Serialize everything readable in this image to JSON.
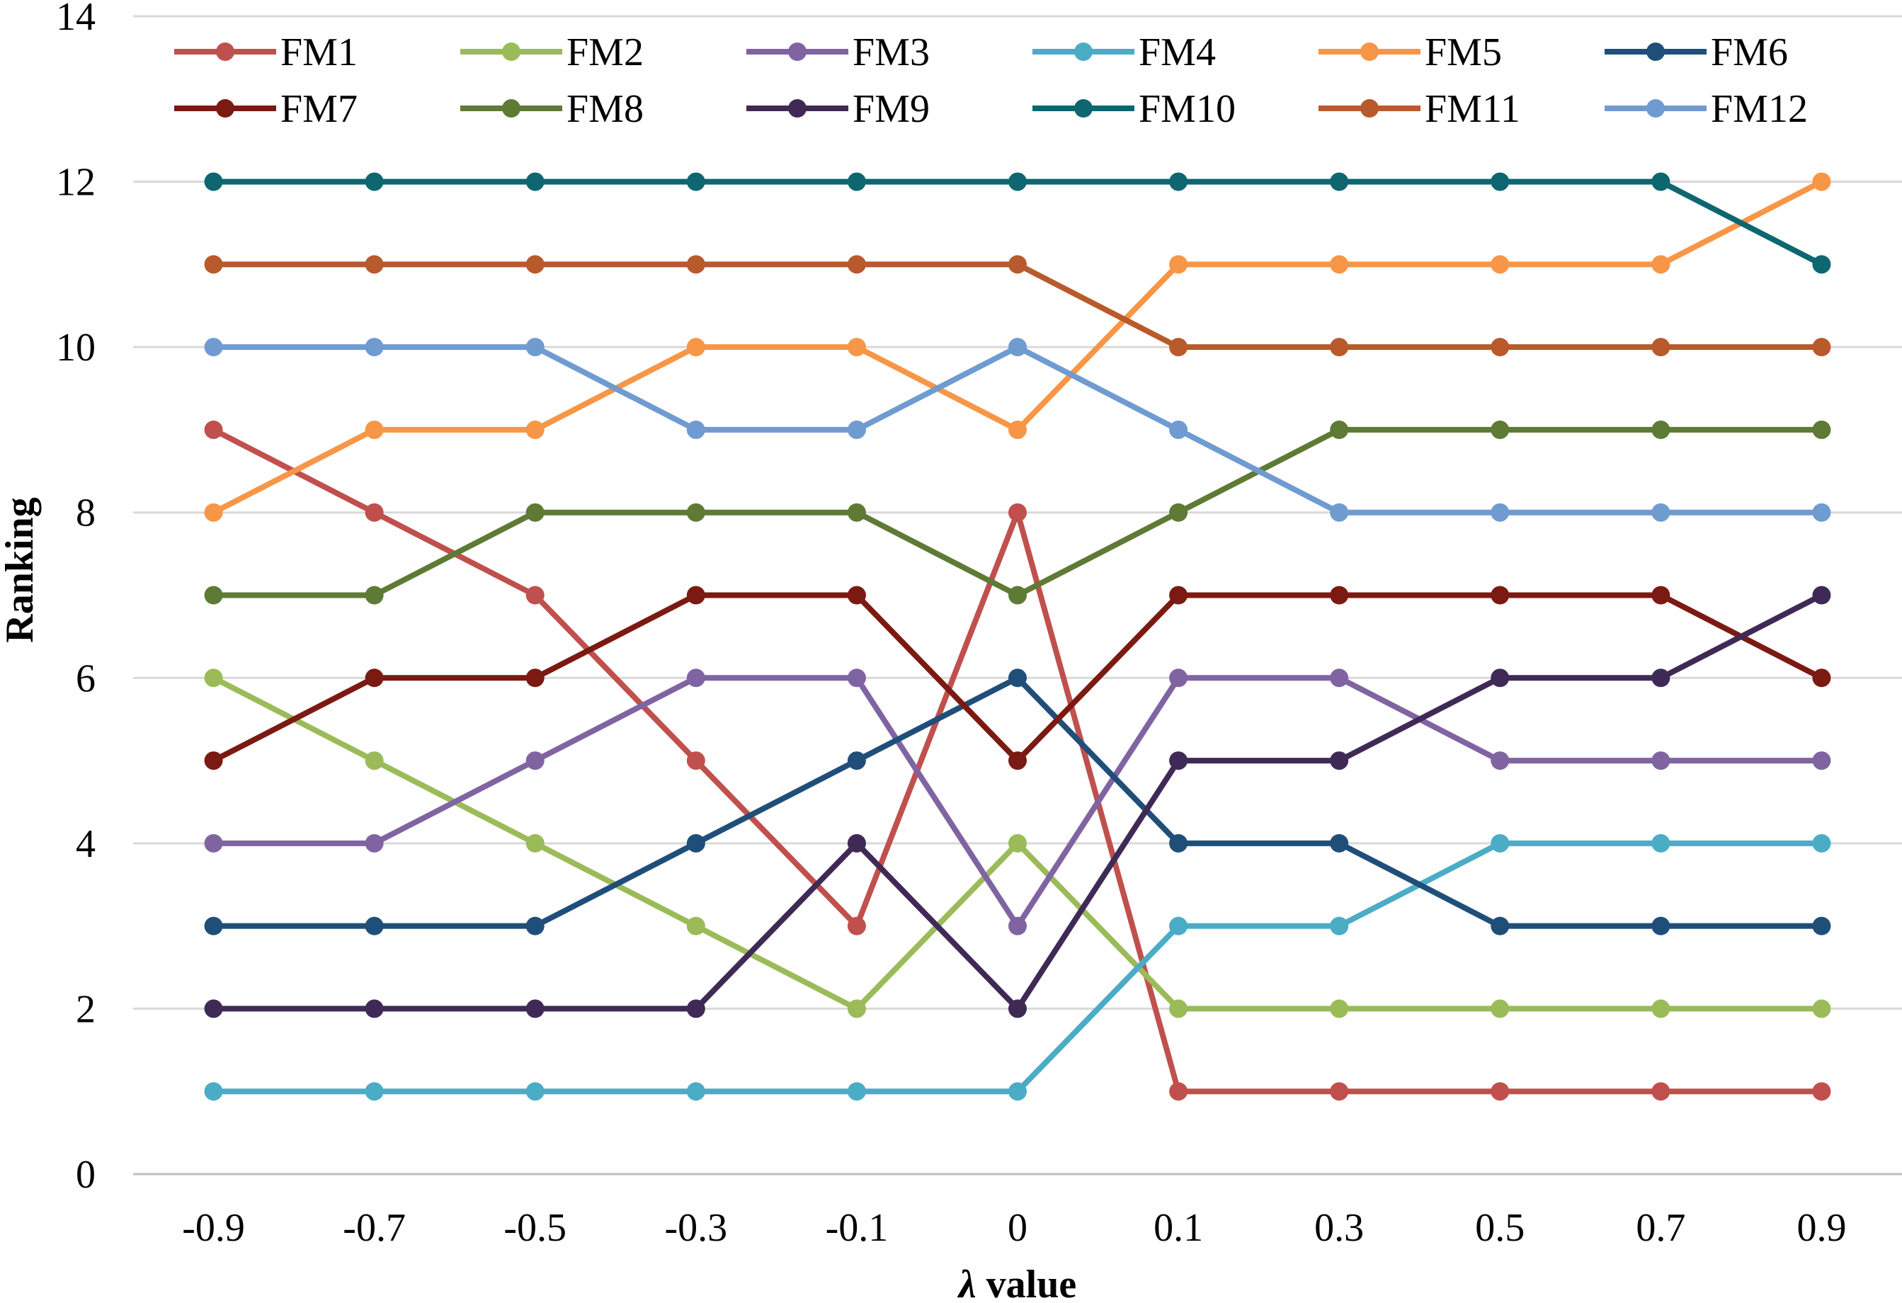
{
  "chart_data": {
    "type": "line",
    "xlabel_symbol": "λ",
    "xlabel_text": " value",
    "ylabel": "Ranking",
    "categories": [
      "-0.9",
      "-0.7",
      "-0.5",
      "-0.3",
      "-0.1",
      "0",
      "0.1",
      "0.3",
      "0.5",
      "0.7",
      "0.9"
    ],
    "ylim": [
      0,
      14
    ],
    "yticks": [
      "0",
      "2",
      "4",
      "6",
      "8",
      "10",
      "12",
      "14"
    ],
    "grid": "horizontal",
    "legend_position": "top",
    "series": [
      {
        "name": "FM1",
        "color": "#C0504D",
        "values": [
          9,
          8,
          7,
          5,
          3,
          8,
          1,
          1,
          1,
          1,
          1
        ]
      },
      {
        "name": "FM2",
        "color": "#9BBB59",
        "values": [
          6,
          5,
          4,
          3,
          2,
          4,
          2,
          2,
          2,
          2,
          2
        ]
      },
      {
        "name": "FM3",
        "color": "#8064A2",
        "values": [
          4,
          4,
          5,
          6,
          6,
          3,
          6,
          6,
          5,
          5,
          5
        ]
      },
      {
        "name": "FM4",
        "color": "#4BACC6",
        "values": [
          1,
          1,
          1,
          1,
          1,
          1,
          3,
          3,
          4,
          4,
          4
        ]
      },
      {
        "name": "FM5",
        "color": "#F79646",
        "values": [
          8,
          9,
          9,
          10,
          10,
          9,
          11,
          11,
          11,
          11,
          12
        ]
      },
      {
        "name": "FM6",
        "color": "#1F4E79",
        "values": [
          3,
          3,
          3,
          4,
          5,
          6,
          4,
          4,
          3,
          3,
          3
        ]
      },
      {
        "name": "FM7",
        "color": "#7B1A12",
        "values": [
          5,
          6,
          6,
          7,
          7,
          5,
          7,
          7,
          7,
          7,
          6
        ]
      },
      {
        "name": "FM8",
        "color": "#5E7A35",
        "values": [
          7,
          7,
          8,
          8,
          8,
          7,
          8,
          9,
          9,
          9,
          9
        ]
      },
      {
        "name": "FM9",
        "color": "#3F2A56",
        "values": [
          2,
          2,
          2,
          2,
          4,
          2,
          5,
          5,
          6,
          6,
          7
        ]
      },
      {
        "name": "FM10",
        "color": "#0E6670",
        "values": [
          12,
          12,
          12,
          12,
          12,
          12,
          12,
          12,
          12,
          12,
          11
        ]
      },
      {
        "name": "FM11",
        "color": "#B85A2C",
        "values": [
          11,
          11,
          11,
          11,
          11,
          11,
          10,
          10,
          10,
          10,
          10
        ]
      },
      {
        "name": "FM12",
        "color": "#6F9BD1",
        "values": [
          10,
          10,
          10,
          9,
          9,
          10,
          9,
          8,
          8,
          8,
          8
        ]
      }
    ]
  }
}
